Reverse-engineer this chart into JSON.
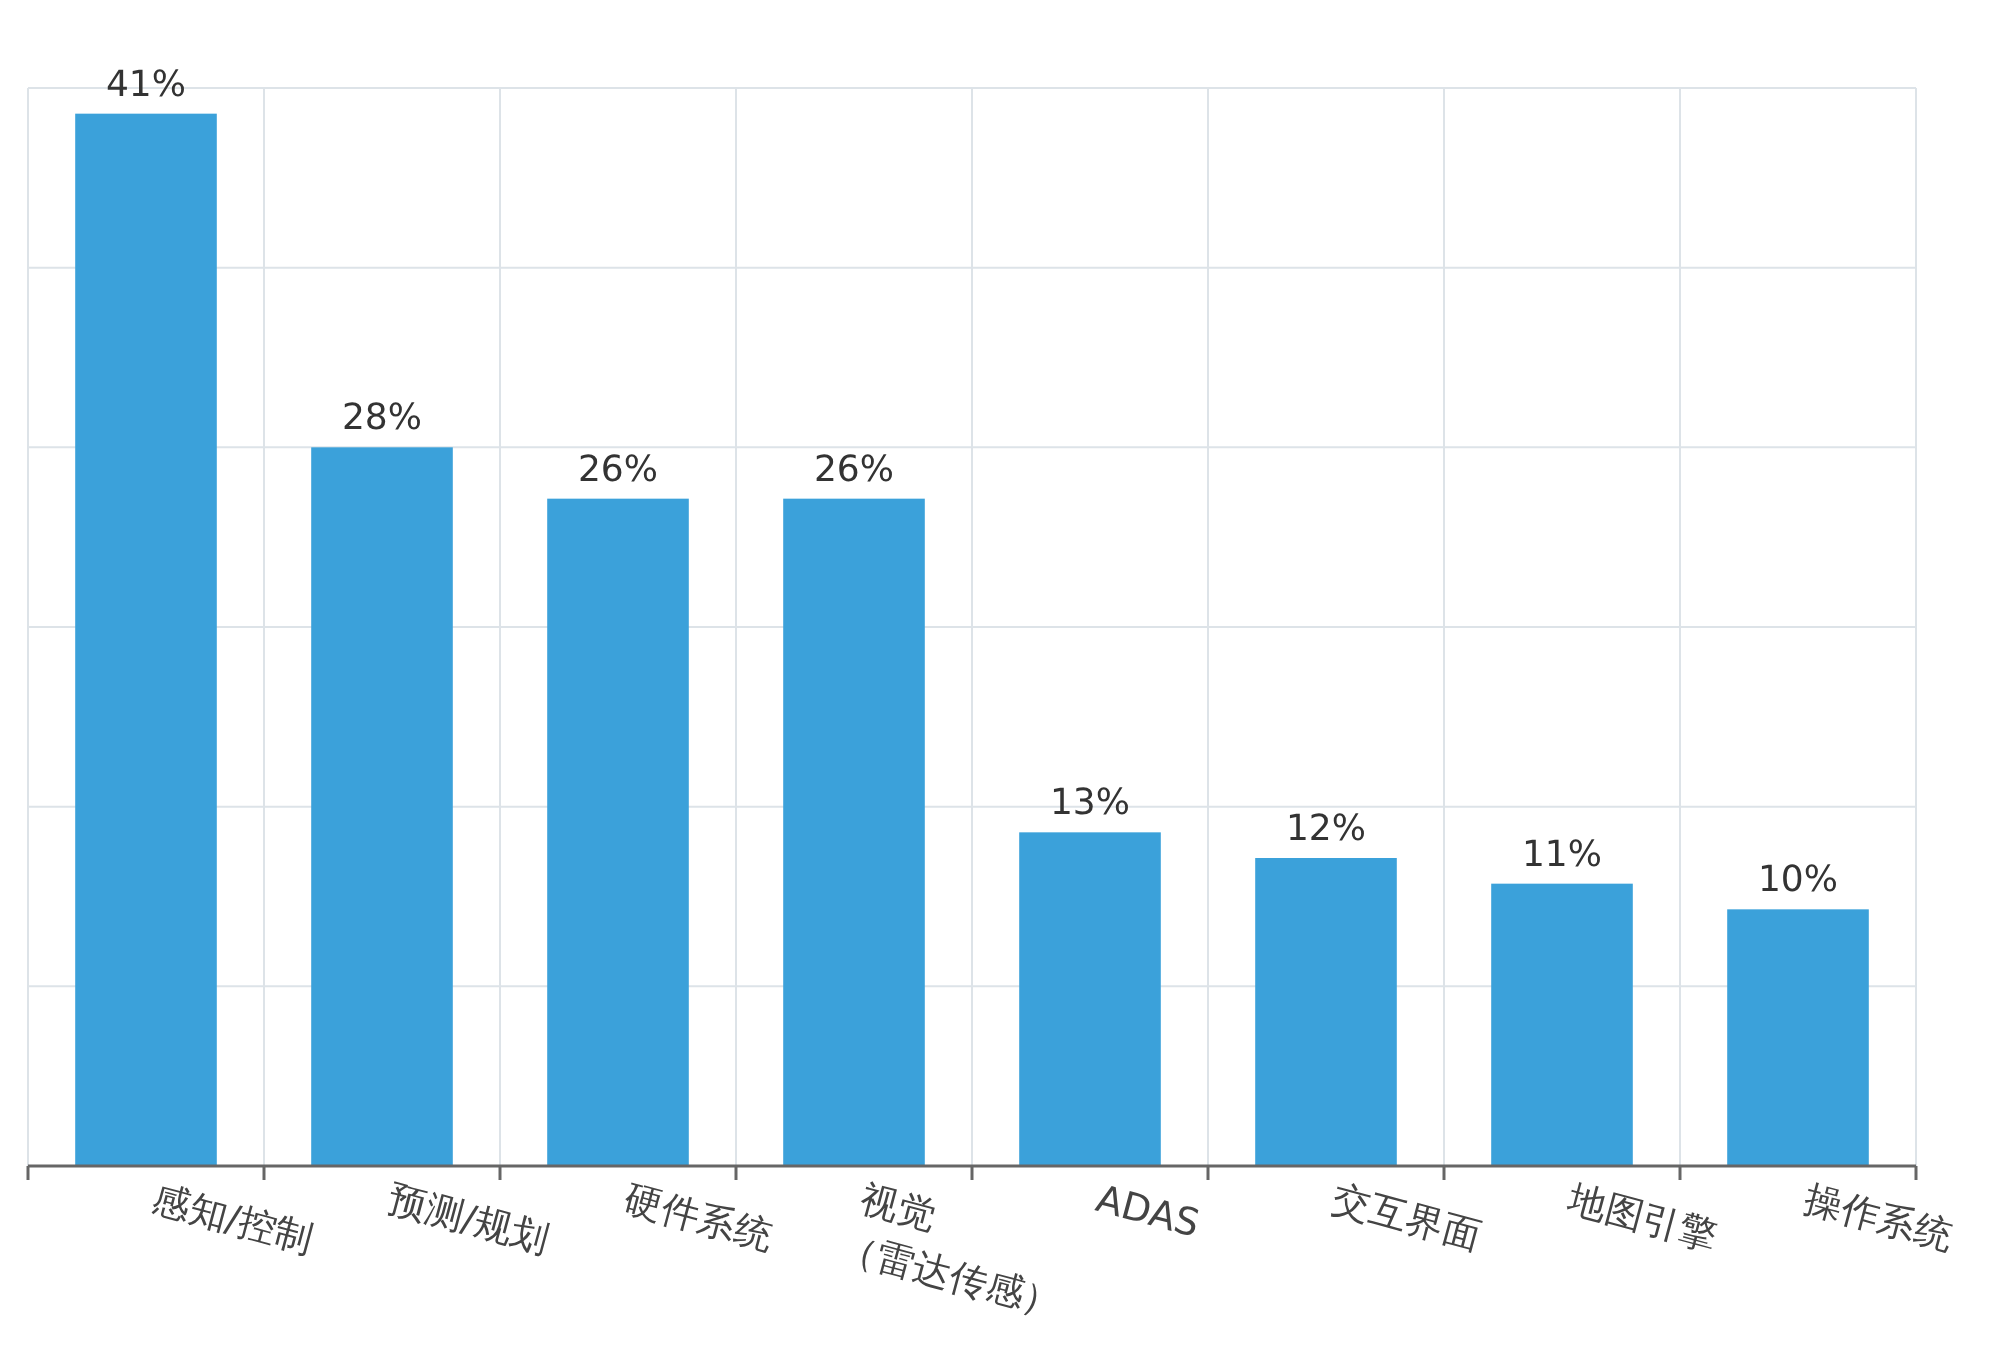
{
  "chart_data": {
    "type": "bar",
    "categories": [
      "感知/控制",
      "预测/规划",
      "硬件系统",
      "视觉（雷达传感）",
      "ADAS",
      "交互界面",
      "地图引擎",
      "操作系统"
    ],
    "values": [
      41,
      28,
      26,
      26,
      13,
      12,
      11,
      10
    ],
    "value_labels": [
      "41%",
      "28%",
      "26%",
      "26%",
      "13%",
      "12%",
      "11%",
      "10%"
    ],
    "color": "#3ba1da",
    "ylim": [
      0,
      42
    ],
    "yticks": [
      {
        "value": 0,
        "label": null
      },
      {
        "value": 7,
        "label": null
      },
      {
        "value": 14,
        "label": null
      },
      {
        "value": 21,
        "label": null
      },
      {
        "value": 28,
        "label": null
      },
      {
        "value": 35,
        "label": null
      },
      {
        "value": 42,
        "label": null
      }
    ],
    "grid": true
  }
}
